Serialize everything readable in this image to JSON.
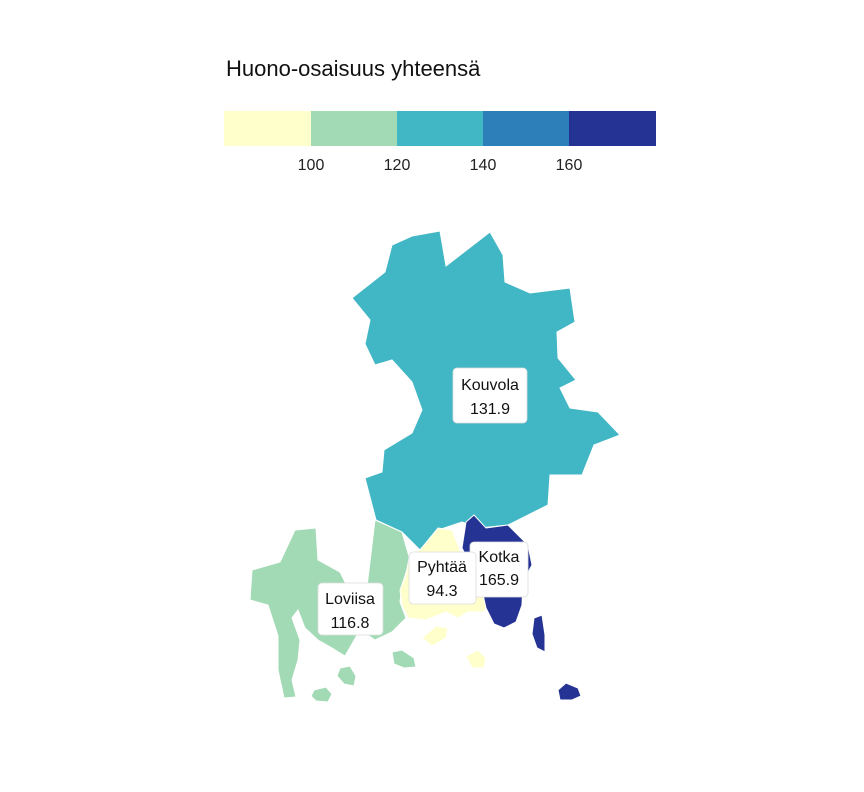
{
  "legend": {
    "title": "Huono-osaisuus yhteensä",
    "colors": [
      "#ffffcc",
      "#a1dab4",
      "#41b6c4",
      "#2c7fb8",
      "#253494"
    ],
    "breaks": [
      "100",
      "120",
      "140",
      "160"
    ]
  },
  "regions": [
    {
      "name": "Kouvola",
      "value": "131.9",
      "color": "#41b6c4"
    },
    {
      "name": "Kotka",
      "value": "165.9",
      "color": "#253494"
    },
    {
      "name": "Pyhtää",
      "value": "94.3",
      "color": "#ffffcc"
    },
    {
      "name": "Loviisa",
      "value": "116.8",
      "color": "#a1dab4"
    }
  ]
}
